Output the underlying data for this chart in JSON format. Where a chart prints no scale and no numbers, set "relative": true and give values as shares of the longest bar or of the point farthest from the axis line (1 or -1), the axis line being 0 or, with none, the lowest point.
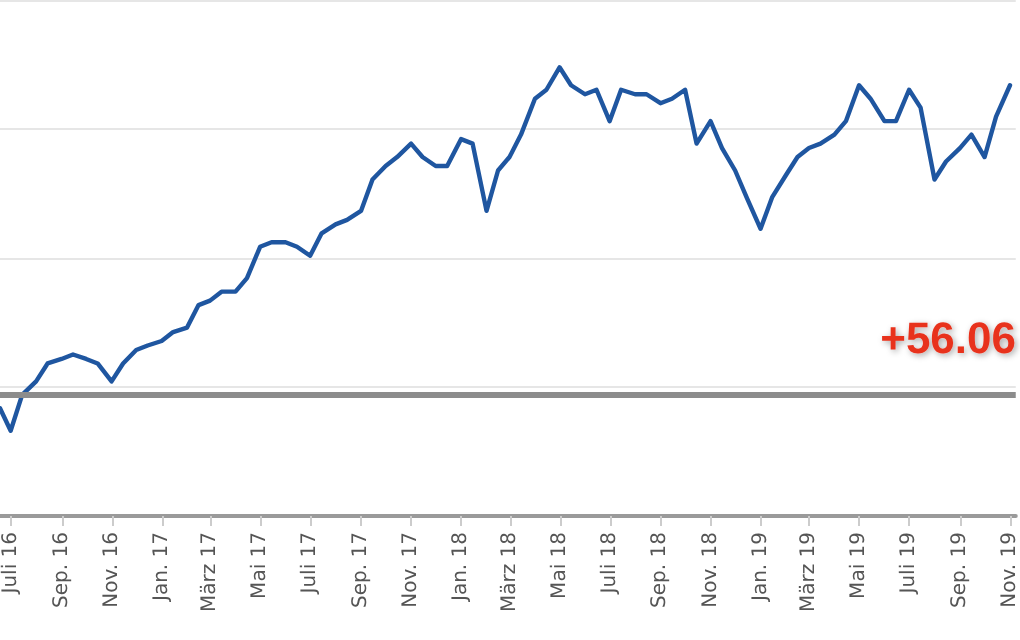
{
  "chart_data": {
    "type": "line",
    "relative": true,
    "color": "#1f56a0",
    "grid": "y",
    "marker": "none",
    "line_style": "solid",
    "x": [
      "2016-06-18",
      "2016-07-01",
      "2016-07-15",
      "2016-08-01",
      "2016-08-15",
      "2016-09-01",
      "2016-09-15",
      "2016-10-01",
      "2016-10-15",
      "2016-11-01",
      "2016-11-15",
      "2016-12-01",
      "2016-12-15",
      "2017-01-01",
      "2017-01-15",
      "2017-02-01",
      "2017-02-15",
      "2017-03-01",
      "2017-03-15",
      "2017-04-01",
      "2017-04-15",
      "2017-05-01",
      "2017-05-15",
      "2017-06-01",
      "2017-06-15",
      "2017-07-01",
      "2017-07-15",
      "2017-08-01",
      "2017-08-15",
      "2017-09-01",
      "2017-09-15",
      "2017-10-01",
      "2017-10-15",
      "2017-11-01",
      "2017-11-15",
      "2017-12-01",
      "2017-12-15",
      "2018-01-01",
      "2018-01-15",
      "2018-02-01",
      "2018-02-15",
      "2018-03-01",
      "2018-03-15",
      "2018-04-01",
      "2018-04-15",
      "2018-05-01",
      "2018-05-15",
      "2018-06-01",
      "2018-06-15",
      "2018-07-01",
      "2018-07-15",
      "2018-08-01",
      "2018-08-15",
      "2018-09-01",
      "2018-09-15",
      "2018-10-01",
      "2018-10-15",
      "2018-11-01",
      "2018-11-15",
      "2018-12-01",
      "2018-12-15",
      "2019-01-01",
      "2019-01-15",
      "2019-02-01",
      "2019-02-15",
      "2019-03-01",
      "2019-03-15",
      "2019-04-01",
      "2019-04-15",
      "2019-05-01",
      "2019-05-15",
      "2019-06-01",
      "2019-06-15",
      "2019-07-01",
      "2019-07-15",
      "2019-08-01",
      "2019-08-15",
      "2019-09-01",
      "2019-09-15",
      "2019-10-01",
      "2019-10-15",
      "2019-11-01"
    ],
    "values": [
      0.24,
      0.19,
      0.27,
      0.3,
      0.34,
      0.35,
      0.36,
      0.35,
      0.34,
      0.3,
      0.34,
      0.37,
      0.38,
      0.39,
      0.41,
      0.42,
      0.47,
      0.48,
      0.5,
      0.5,
      0.53,
      0.6,
      0.61,
      0.61,
      0.6,
      0.58,
      0.63,
      0.65,
      0.66,
      0.68,
      0.75,
      0.78,
      0.8,
      0.83,
      0.8,
      0.78,
      0.78,
      0.84,
      0.83,
      0.68,
      0.77,
      0.8,
      0.85,
      0.93,
      0.95,
      1,
      0.96,
      0.94,
      0.95,
      0.88,
      0.95,
      0.94,
      0.94,
      0.92,
      0.93,
      0.95,
      0.83,
      0.88,
      0.82,
      0.77,
      0.71,
      0.64,
      0.71,
      0.76,
      0.8,
      0.82,
      0.83,
      0.85,
      0.88,
      0.96,
      0.93,
      0.88,
      0.88,
      0.95,
      0.91,
      0.75,
      0.79,
      0.82,
      0.85,
      0.8,
      0.89,
      0.96
    ],
    "xlim": [
      "2016-06-18",
      "2019-11-08"
    ],
    "xticks": [
      {
        "value": "2016-07",
        "label": "Juli 16"
      },
      {
        "value": "2016-09",
        "label": "Sep. 16"
      },
      {
        "value": "2016-11",
        "label": "Nov. 16"
      },
      {
        "value": "2017-01",
        "label": "Jan. 17"
      },
      {
        "value": "2017-03",
        "label": "März 17"
      },
      {
        "value": "2017-05",
        "label": "Mai 17"
      },
      {
        "value": "2017-07",
        "label": "Juli 17"
      },
      {
        "value": "2017-09",
        "label": "Sep. 17"
      },
      {
        "value": "2017-11",
        "label": "Nov. 17"
      },
      {
        "value": "2018-01",
        "label": "Jan. 18"
      },
      {
        "value": "2018-03",
        "label": "März 18"
      },
      {
        "value": "2018-05",
        "label": "Mai 18"
      },
      {
        "value": "2018-07",
        "label": "Juli 18"
      },
      {
        "value": "2018-09",
        "label": "Sep. 18"
      },
      {
        "value": "2018-11",
        "label": "Nov. 18"
      },
      {
        "value": "2019-01",
        "label": "Jan. 19"
      },
      {
        "value": "2019-03",
        "label": "März 19"
      },
      {
        "value": "2019-05",
        "label": "Mai 19"
      },
      {
        "value": "2019-07",
        "label": "Juli 19"
      },
      {
        "value": "2019-09",
        "label": "Sep. 19"
      },
      {
        "value": "2019-11",
        "label": "Nov. 19"
      }
    ],
    "ref_lines": [
      {
        "axis": "y",
        "value": 0.27,
        "color": "#8c8c8c"
      }
    ],
    "annotations": [
      "+56.06"
    ]
  }
}
